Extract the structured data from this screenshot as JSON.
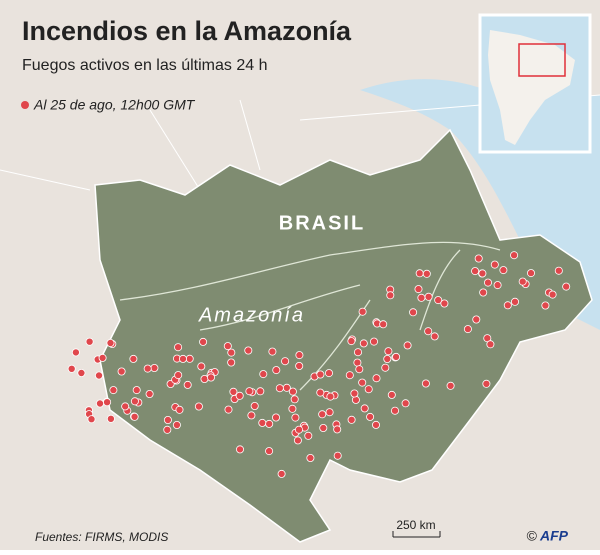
{
  "header": {
    "title": "Incendios en la Amazonía",
    "subtitle": "Fuegos activos en las últimas 24 h"
  },
  "legend": {
    "label": "Al 25 de ago, 12h00  GMT"
  },
  "map": {
    "country_label": "BRASIL",
    "region_label": "Amazonía"
  },
  "scale": {
    "label": "250 km"
  },
  "footer": {
    "source": "Fuentes: FIRMS, MODIS",
    "copyright": "©",
    "credit": "AFP"
  }
}
